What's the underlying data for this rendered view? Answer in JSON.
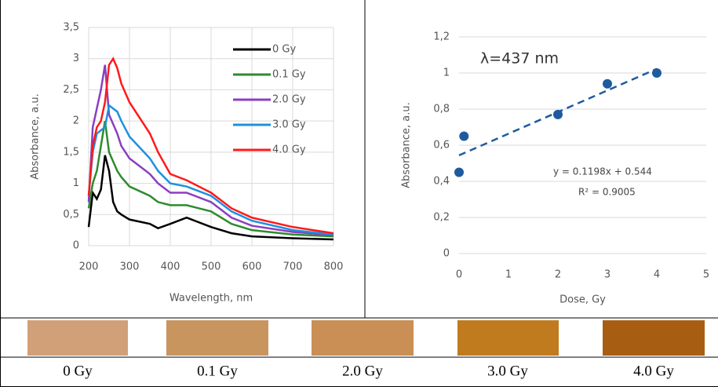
{
  "chart_data": [
    {
      "type": "line",
      "x_label": "Wavelength, nm",
      "y_label": "Absorbance, a.u.",
      "x": [
        200,
        210,
        220,
        230,
        240,
        250,
        260,
        270,
        280,
        300,
        350,
        370,
        400,
        440,
        500,
        550,
        600,
        700,
        800
      ],
      "series": [
        {
          "name": "0 Gy",
          "color": "#000000",
          "values": [
            0.3,
            0.85,
            0.75,
            0.9,
            1.45,
            1.2,
            0.7,
            0.55,
            0.5,
            0.42,
            0.35,
            0.28,
            0.35,
            0.45,
            0.3,
            0.2,
            0.15,
            0.12,
            0.1
          ]
        },
        {
          "name": "0.1 Gy",
          "color": "#2e8b2e",
          "values": [
            0.6,
            1.0,
            1.2,
            1.6,
            2.0,
            1.5,
            1.35,
            1.2,
            1.1,
            0.95,
            0.8,
            0.7,
            0.65,
            0.65,
            0.55,
            0.35,
            0.25,
            0.18,
            0.15
          ]
        },
        {
          "name": "2.0 Gy",
          "color": "#8a3fc0",
          "values": [
            0.7,
            1.9,
            2.2,
            2.5,
            2.9,
            2.1,
            1.95,
            1.8,
            1.6,
            1.4,
            1.15,
            1.0,
            0.85,
            0.85,
            0.7,
            0.45,
            0.32,
            0.22,
            0.17
          ]
        },
        {
          "name": "3.0 Gy",
          "color": "#1e90e0",
          "values": [
            0.8,
            1.5,
            1.8,
            1.85,
            1.9,
            2.25,
            2.2,
            2.15,
            2.0,
            1.75,
            1.4,
            1.2,
            1.0,
            0.95,
            0.8,
            0.55,
            0.4,
            0.25,
            0.18
          ]
        },
        {
          "name": "4.0 Gy",
          "color": "#ff1a1a",
          "values": [
            0.8,
            1.6,
            1.9,
            2.0,
            2.3,
            2.9,
            3.0,
            2.85,
            2.6,
            2.3,
            1.8,
            1.5,
            1.15,
            1.05,
            0.85,
            0.6,
            0.45,
            0.3,
            0.2
          ]
        }
      ],
      "xlim": [
        200,
        800
      ],
      "xticks": [
        200,
        300,
        400,
        500,
        600,
        700,
        800
      ],
      "ylim": [
        0,
        3.5
      ],
      "yticks": [
        0,
        {
          "value": 0.5,
          "label": "0,5"
        },
        1,
        {
          "value": 1.5,
          "label": "1,5"
        },
        2,
        {
          "value": 2.5,
          "label": "2,5"
        },
        3,
        {
          "value": 3.5,
          "label": "3,5"
        }
      ],
      "grid": true,
      "legend": "top-right"
    },
    {
      "type": "scatter",
      "x_label": "Dose, Gy",
      "y_label": "Absorbance, a.u.",
      "annotation": "λ=437 nm",
      "x": [
        0,
        0.1,
        2,
        3,
        4
      ],
      "series": [
        {
          "color": "#1f5a9e",
          "values": [
            0.45,
            0.65,
            0.77,
            0.94,
            1.0
          ]
        }
      ],
      "trendline": {
        "slope": 0.1198,
        "intercept": 0.544,
        "equation": "y = 0.1198x + 0.544",
        "r2": "R² = 0.9005"
      },
      "xlim": [
        0,
        5
      ],
      "xticks": [
        0,
        1,
        2,
        3,
        4,
        5
      ],
      "ylim": [
        0,
        1.2
      ],
      "yticks": [
        0,
        {
          "value": 0.2,
          "label": "0,2"
        },
        {
          "value": 0.4,
          "label": "0,4"
        },
        {
          "value": 0.6,
          "label": "0,6"
        },
        {
          "value": 0.8,
          "label": "0,8"
        },
        1,
        {
          "value": 1.2,
          "label": "1,2"
        }
      ],
      "grid": true
    }
  ],
  "sample_labels": [
    "0 Gy",
    "0.1 Gy",
    "2.0 Gy",
    "3.0 Gy",
    "4.0 Gy"
  ]
}
